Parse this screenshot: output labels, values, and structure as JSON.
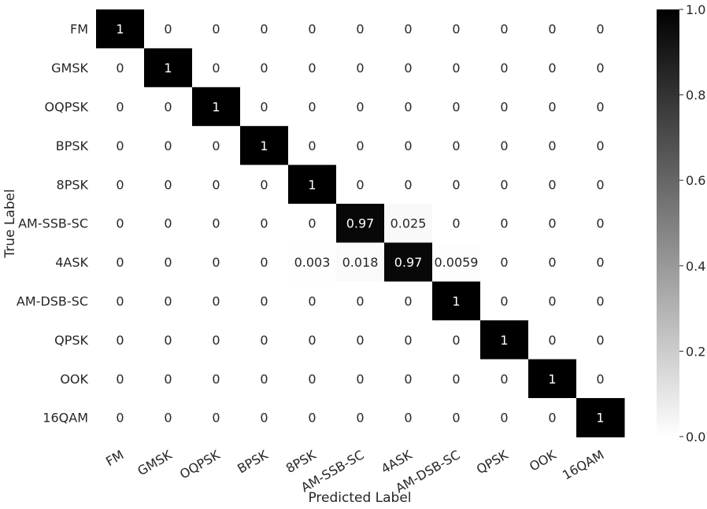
{
  "chart_data": {
    "type": "heatmap",
    "title": "",
    "xlabel": "Predicted Label",
    "ylabel": "True Label",
    "x_categories": [
      "FM",
      "GMSK",
      "OQPSK",
      "BPSK",
      "8PSK",
      "AM-SSB-SC",
      "4ASK",
      "AM-DSB-SC",
      "QPSK",
      "OOK",
      "16QAM"
    ],
    "y_categories": [
      "FM",
      "GMSK",
      "OQPSK",
      "BPSK",
      "8PSK",
      "AM-SSB-SC",
      "4ASK",
      "AM-DSB-SC",
      "QPSK",
      "OOK",
      "16QAM"
    ],
    "values": [
      [
        1,
        0,
        0,
        0,
        0,
        0,
        0,
        0,
        0,
        0,
        0
      ],
      [
        0,
        1,
        0,
        0,
        0,
        0,
        0,
        0,
        0,
        0,
        0
      ],
      [
        0,
        0,
        1,
        0,
        0,
        0,
        0,
        0,
        0,
        0,
        0
      ],
      [
        0,
        0,
        0,
        1,
        0,
        0,
        0,
        0,
        0,
        0,
        0
      ],
      [
        0,
        0,
        0,
        0,
        1,
        0,
        0,
        0,
        0,
        0,
        0
      ],
      [
        0,
        0,
        0,
        0,
        0,
        0.97,
        0.025,
        0,
        0,
        0,
        0
      ],
      [
        0,
        0,
        0,
        0,
        0.003,
        0.018,
        0.97,
        0.0059,
        0,
        0,
        0
      ],
      [
        0,
        0,
        0,
        0,
        0,
        0,
        0,
        1,
        0,
        0,
        0
      ],
      [
        0,
        0,
        0,
        0,
        0,
        0,
        0,
        0,
        1,
        0,
        0
      ],
      [
        0,
        0,
        0,
        0,
        0,
        0,
        0,
        0,
        0,
        1,
        0
      ],
      [
        0,
        0,
        0,
        0,
        0,
        0,
        0,
        0,
        0,
        0,
        1
      ]
    ],
    "cell_labels": [
      [
        "1",
        "0",
        "0",
        "0",
        "0",
        "0",
        "0",
        "0",
        "0",
        "0",
        "0"
      ],
      [
        "0",
        "1",
        "0",
        "0",
        "0",
        "0",
        "0",
        "0",
        "0",
        "0",
        "0"
      ],
      [
        "0",
        "0",
        "1",
        "0",
        "0",
        "0",
        "0",
        "0",
        "0",
        "0",
        "0"
      ],
      [
        "0",
        "0",
        "0",
        "1",
        "0",
        "0",
        "0",
        "0",
        "0",
        "0",
        "0"
      ],
      [
        "0",
        "0",
        "0",
        "0",
        "1",
        "0",
        "0",
        "0",
        "0",
        "0",
        "0"
      ],
      [
        "0",
        "0",
        "0",
        "0",
        "0",
        "0.97",
        "0.025",
        "0",
        "0",
        "0",
        "0"
      ],
      [
        "0",
        "0",
        "0",
        "0",
        "0.003",
        "0.018",
        "0.97",
        "0.0059",
        "0",
        "0",
        "0"
      ],
      [
        "0",
        "0",
        "0",
        "0",
        "0",
        "0",
        "0",
        "1",
        "0",
        "0",
        "0"
      ],
      [
        "0",
        "0",
        "0",
        "0",
        "0",
        "0",
        "0",
        "0",
        "1",
        "0",
        "0"
      ],
      [
        "0",
        "0",
        "0",
        "0",
        "0",
        "0",
        "0",
        "0",
        "0",
        "1",
        "0"
      ],
      [
        "0",
        "0",
        "0",
        "0",
        "0",
        "0",
        "0",
        "0",
        "0",
        "0",
        "1"
      ]
    ],
    "colorbar": {
      "range": [
        0.0,
        1.0
      ],
      "ticks": [
        0.0,
        0.2,
        0.4,
        0.6,
        0.8,
        1.0
      ],
      "tick_labels": [
        "0.0",
        "0.2",
        "0.4",
        "0.6",
        "0.8",
        "1.0"
      ],
      "colormap": "Greys",
      "low_color": "#ffffff",
      "high_color": "#000000"
    },
    "grid": false
  }
}
